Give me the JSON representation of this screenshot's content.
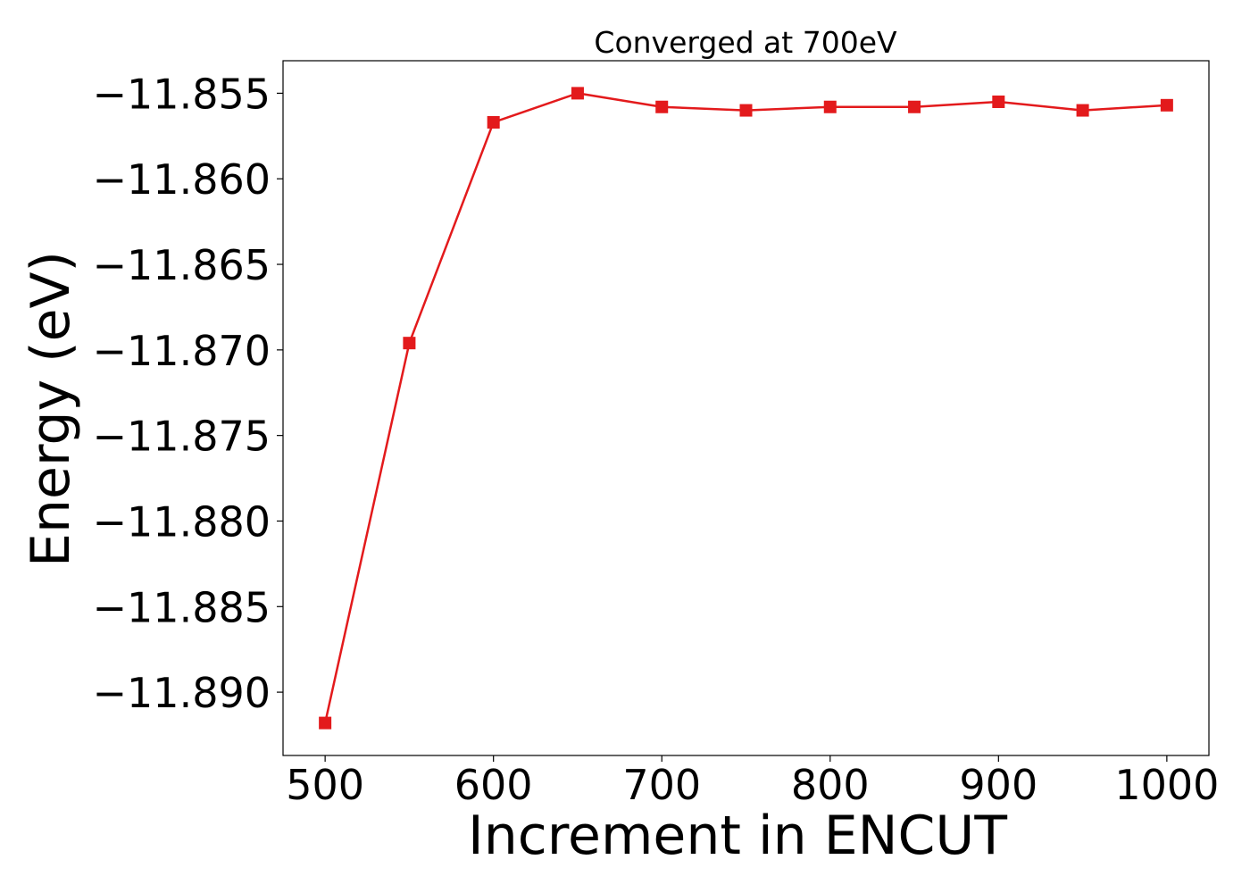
{
  "chart_data": {
    "type": "line",
    "title": "Converged at 700eV",
    "xlabel": "Increment in ENCUT",
    "ylabel": "Energy (eV)",
    "xlim": [
      475,
      1025
    ],
    "ylim": [
      -11.8937,
      -11.8531
    ],
    "xticks": [
      500,
      600,
      700,
      800,
      900,
      1000
    ],
    "xtick_labels": [
      "500",
      "600",
      "700",
      "800",
      "900",
      "1000"
    ],
    "yticks": [
      -11.855,
      -11.86,
      -11.865,
      -11.87,
      -11.875,
      -11.88,
      -11.885,
      -11.89
    ],
    "ytick_labels": [
      "−11.855",
      "−11.860",
      "−11.865",
      "−11.870",
      "−11.875",
      "−11.880",
      "−11.885",
      "−11.890"
    ],
    "grid": false,
    "series": [
      {
        "color": "#e31a1c",
        "marker": "square",
        "x": [
          500,
          550,
          600,
          650,
          700,
          750,
          800,
          850,
          900,
          950,
          1000
        ],
        "y": [
          -11.8918,
          -11.8696,
          -11.8567,
          -11.855,
          -11.8558,
          -11.856,
          -11.8558,
          -11.8558,
          -11.8555,
          -11.856,
          -11.8557
        ]
      }
    ]
  }
}
